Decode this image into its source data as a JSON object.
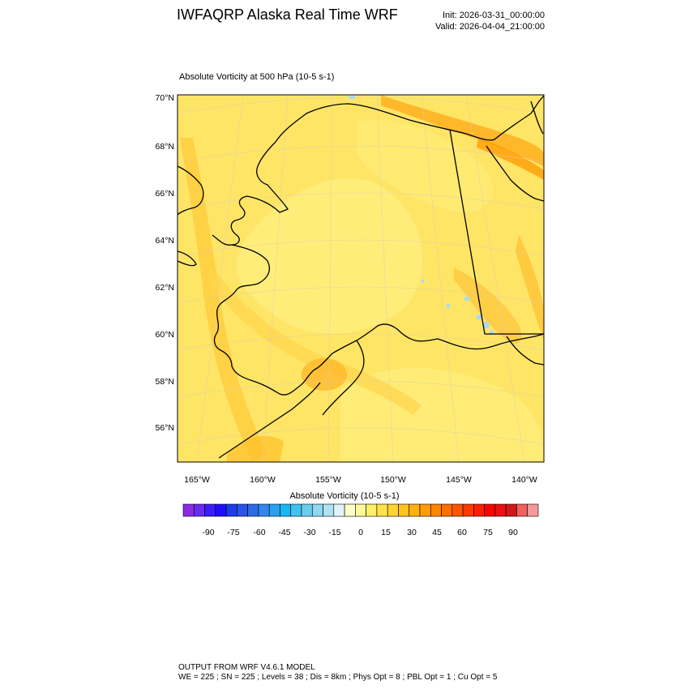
{
  "header": {
    "title": "IWFAQRP Alaska Real Time WRF",
    "init": "Init: 2026-03-31_00:00:00",
    "valid": "Valid: 2026-04-04_21:00:00"
  },
  "field": {
    "title": "Absolute Vorticity at 500 hPa   (10-5 s-1)"
  },
  "map": {
    "lat_labels": [
      "70°N",
      "68°N",
      "66°N",
      "64°N",
      "62°N",
      "60°N",
      "58°N",
      "56°N"
    ],
    "lon_labels": [
      "165°W",
      "160°W",
      "155°W",
      "150°W",
      "145°W",
      "140°W"
    ],
    "background_color": "#FFE566"
  },
  "colorbar": {
    "title": "Absolute Vorticity  (10-5 s-1)",
    "labels": [
      "-90",
      "-75",
      "-60",
      "-45",
      "-30",
      "-15",
      "0",
      "15",
      "30",
      "45",
      "60",
      "75",
      "90"
    ],
    "colors": [
      "#8A2BE2",
      "#6A2BF0",
      "#3B1CFF",
      "#1E10FF",
      "#1F3BE8",
      "#2A54E6",
      "#2E6BE8",
      "#3485EE",
      "#2AA0F0",
      "#16B8F5",
      "#3FC2F2",
      "#6BCDEE",
      "#8ED8F0",
      "#B0E2F2",
      "#DFF5FB",
      "#FFFFC8",
      "#FFF899",
      "#FFF066",
      "#FFE34A",
      "#FFD433",
      "#FFC21E",
      "#FFB010",
      "#FF9C08",
      "#FF8500",
      "#FF6E00",
      "#FF5500",
      "#FF3A00",
      "#FF1E00",
      "#FF0000",
      "#E81010",
      "#D01818",
      "#F06060",
      "#F49A9A"
    ]
  },
  "footer": {
    "line1": "OUTPUT FROM WRF V4.6.1 MODEL",
    "line2": "WE = 225 ; SN = 225 ; Levels = 38 ; Dis = 8km ; Phys Opt = 8 ; PBL Opt = 1 ; Cu Opt = 5"
  }
}
